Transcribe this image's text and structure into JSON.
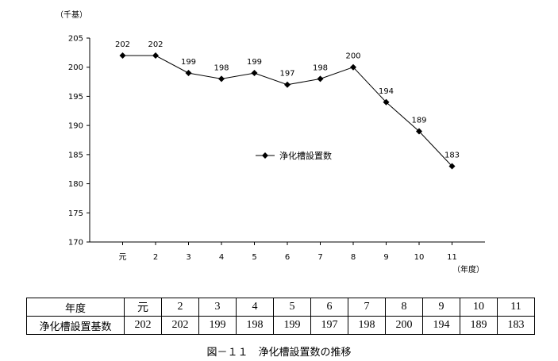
{
  "chart_data": {
    "type": "line",
    "ylabel": "（千基）",
    "xlabel": "（年度）",
    "categories": [
      "元",
      "2",
      "3",
      "4",
      "5",
      "6",
      "7",
      "8",
      "9",
      "10",
      "11"
    ],
    "series": [
      {
        "name": "浄化槽設置数",
        "values": [
          202,
          202,
          199,
          198,
          199,
          197,
          198,
          200,
          194,
          189,
          183
        ]
      }
    ],
    "ylim": [
      170,
      205
    ],
    "yticks": [
      170,
      175,
      180,
      185,
      190,
      195,
      200,
      205
    ],
    "grid": false,
    "legend": "center-right",
    "marker": "diamond",
    "line_color": "#000000"
  },
  "table": {
    "header_label": "年度",
    "row_label": "浄化槽設置基数",
    "years": [
      "元",
      "2",
      "3",
      "4",
      "5",
      "6",
      "7",
      "8",
      "9",
      "10",
      "11"
    ],
    "values": [
      "202",
      "202",
      "199",
      "198",
      "199",
      "197",
      "198",
      "200",
      "194",
      "189",
      "183"
    ]
  },
  "caption": "図－１１　浄化槽設置数の推移"
}
